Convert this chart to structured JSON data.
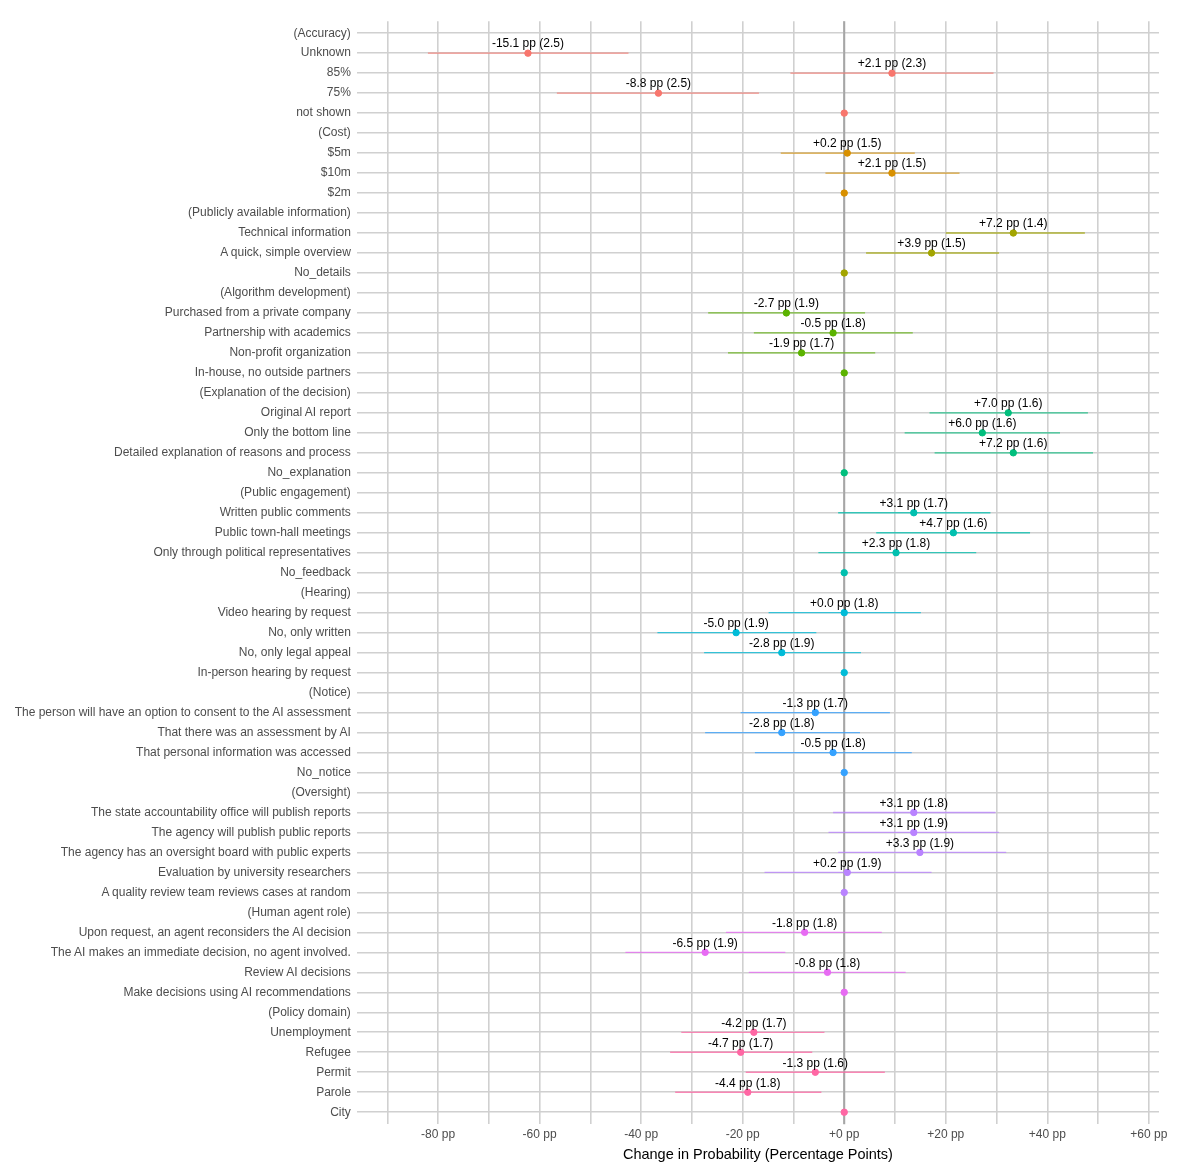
{
  "chart_data": {
    "type": "scatter",
    "orientation": "horizontal",
    "xlabel": "Change in Probability (Percentage Points)",
    "categories": [
      "(Accuracy)",
      "Unknown",
      "85%",
      "75%",
      "not shown",
      "(Cost)",
      "$5m",
      "$10m",
      "$2m",
      "(Publicly available information)",
      "Technical information",
      "A quick, simple overview",
      "No_details",
      "(Algorithm development)",
      "Purchased from a private company",
      "Partnership with academics",
      "Non-profit organization",
      "In-house, no outside partners",
      "(Explanation of the decision)",
      "Original AI report",
      "Only the bottom line",
      "Detailed explanation of reasons and process",
      "No_explanation",
      "(Public engagement)",
      "Written public comments",
      "Public town-hall meetings",
      "Only through political representatives",
      "No_feedback",
      "(Hearing)",
      "Video hearing by request",
      "No, only written",
      "No, only legal appeal",
      "In-person hearing by request",
      "(Notice)",
      "The person will have an option to consent to the AI assessment",
      "That there was an assessment by AI",
      "That personal information was accessed",
      "No_notice",
      "(Oversight)",
      "The state accountability office will publish reports",
      "The agency will publish public reports",
      "The agency has an oversight board with public experts",
      "Evaluation by university researchers",
      "A quality review team reviews cases at random",
      "(Human agent role)",
      "Upon request, an agent reconsiders the AI decision",
      "The AI makes an immediate decision, no agent involved.",
      "Review AI decisions",
      "Make decisions using AI recommendations",
      "(Policy domain)",
      "Unemployment",
      "Refugee",
      "Permit",
      "Parole",
      "City"
    ],
    "values": [
      null,
      -62.3,
      9.4,
      -36.6,
      0,
      null,
      0.6,
      9.4,
      0,
      null,
      33.3,
      17.2,
      0,
      null,
      -11.4,
      -2.2,
      -8.4,
      0,
      null,
      32.3,
      27.2,
      33.3,
      0,
      null,
      13.7,
      21.5,
      10.2,
      0,
      null,
      0,
      -21.3,
      -12.3,
      0,
      null,
      -5.7,
      -12.3,
      -2.2,
      0,
      null,
      13.7,
      13.7,
      14.9,
      0.6,
      0,
      null,
      -7.8,
      -27.4,
      -3.3,
      0,
      null,
      -17.8,
      -20.4,
      -5.7,
      -19,
      0
    ],
    "errors": [
      null,
      [
        -82,
        -42.5
      ],
      [
        -10.6,
        29.4
      ],
      [
        -56.6,
        -16.8
      ],
      null,
      null,
      [
        -12.5,
        13.9
      ],
      [
        -3.7,
        22.7
      ],
      null,
      null,
      [
        20,
        47.4
      ],
      [
        4.3,
        30.5
      ],
      null,
      null,
      [
        -26.8,
        4.1
      ],
      [
        -17.8,
        13.5
      ],
      [
        -22.9,
        6.1
      ],
      null,
      null,
      [
        16.8,
        48
      ],
      [
        11.9,
        42.5
      ],
      [
        17.8,
        49
      ],
      null,
      null,
      [
        -1.2,
        28.8
      ],
      [
        6.3,
        36.6
      ],
      [
        -5.1,
        26
      ],
      null,
      null,
      [
        -14.9,
        15.1
      ],
      [
        -36.8,
        -5.5
      ],
      [
        -27.6,
        3.3
      ],
      null,
      null,
      [
        -20.4,
        9
      ],
      [
        -27.4,
        3.1
      ],
      [
        -17.6,
        13.3
      ],
      null,
      null,
      [
        -2.2,
        29.8
      ],
      [
        -3.1,
        30.5
      ],
      [
        -1.2,
        31.9
      ],
      [
        -15.7,
        17.2
      ],
      null,
      null,
      [
        -23.3,
        7.4
      ],
      [
        -43.1,
        -11.6
      ],
      [
        -18.8,
        12.1
      ],
      null,
      null,
      [
        -32.1,
        -3.9
      ],
      [
        -34.3,
        -6.3
      ],
      [
        -19.4,
        8
      ],
      [
        -33.3,
        -4.5
      ],
      null
    ],
    "value_labels": [
      null,
      "-15.1 pp (2.5)",
      "+2.1 pp (2.3)",
      "-8.8 pp (2.5)",
      null,
      null,
      "+0.2 pp (1.5)",
      "+2.1 pp (1.5)",
      null,
      null,
      "+7.2 pp (1.4)",
      "+3.9 pp (1.5)",
      null,
      null,
      "-2.7 pp (1.9)",
      "-0.5 pp (1.8)",
      "-1.9 pp (1.7)",
      null,
      null,
      "+7.0 pp (1.6)",
      "+6.0 pp (1.6)",
      "+7.2 pp (1.6)",
      null,
      null,
      "+3.1 pp (1.7)",
      "+4.7 pp (1.6)",
      "+2.3 pp (1.8)",
      null,
      null,
      "+0.0 pp (1.8)",
      "-5.0 pp (1.9)",
      "-2.8 pp (1.9)",
      null,
      null,
      "-1.3 pp (1.7)",
      "-2.8 pp (1.8)",
      "-0.5 pp (1.8)",
      null,
      null,
      "+3.1 pp (1.8)",
      "+3.1 pp (1.9)",
      "+3.3 pp (1.9)",
      "+0.2 pp (1.9)",
      null,
      null,
      "-1.8 pp (1.8)",
      "-6.5 pp (1.9)",
      "-0.8 pp (1.8)",
      null,
      null,
      "-4.2 pp (1.7)",
      "-4.7 pp (1.7)",
      "-1.3 pp (1.6)",
      "-4.4 pp (1.8)",
      null
    ],
    "colors": [
      "#f8766d",
      "#f8766d",
      "#f8766d",
      "#f8766d",
      "#f8766d",
      "#d89000",
      "#d89000",
      "#d89000",
      "#d89000",
      "#a3a500",
      "#a3a500",
      "#a3a500",
      "#a3a500",
      "#5bb300",
      "#5bb300",
      "#5bb300",
      "#5bb300",
      "#5bb300",
      "#00bf7d",
      "#00bf7d",
      "#00bf7d",
      "#00bf7d",
      "#00bf7d",
      "#00c0af",
      "#00c0af",
      "#00c0af",
      "#00c0af",
      "#00c0af",
      "#00bcd8",
      "#00bcd8",
      "#00bcd8",
      "#00bcd8",
      "#00bcd8",
      "#35a2ff",
      "#35a2ff",
      "#35a2ff",
      "#35a2ff",
      "#35a2ff",
      "#b983ff",
      "#b983ff",
      "#b983ff",
      "#b983ff",
      "#b983ff",
      "#b983ff",
      "#e76bf3",
      "#e76bf3",
      "#e76bf3",
      "#e76bf3",
      "#e76bf3",
      "#ff67a4",
      "#ff67a4",
      "#ff67a4",
      "#ff67a4",
      "#ff67a4",
      "#ff67a4"
    ],
    "xlim": [
      -96,
      62
    ],
    "xticks": [
      {
        "value": -90,
        "label": null
      },
      {
        "value": -80,
        "label": "-80 pp"
      },
      {
        "value": -70,
        "label": null
      },
      {
        "value": -60,
        "label": "-60 pp"
      },
      {
        "value": -50,
        "label": null
      },
      {
        "value": -40,
        "label": "-40 pp"
      },
      {
        "value": -30,
        "label": null
      },
      {
        "value": -20,
        "label": "-20 pp"
      },
      {
        "value": -10,
        "label": null
      },
      {
        "value": 0,
        "label": "+0 pp"
      },
      {
        "value": 10,
        "label": null
      },
      {
        "value": 20,
        "label": "+20 pp"
      },
      {
        "value": 30,
        "label": null
      },
      {
        "value": 40,
        "label": "+40 pp"
      },
      {
        "value": 50,
        "label": null
      },
      {
        "value": 60,
        "label": "+60 pp"
      }
    ],
    "ref_lines": [
      {
        "axis": "x",
        "value": 0,
        "color": "#a6a6a6"
      }
    ],
    "grid": true,
    "legend": false,
    "marker": "circle"
  }
}
